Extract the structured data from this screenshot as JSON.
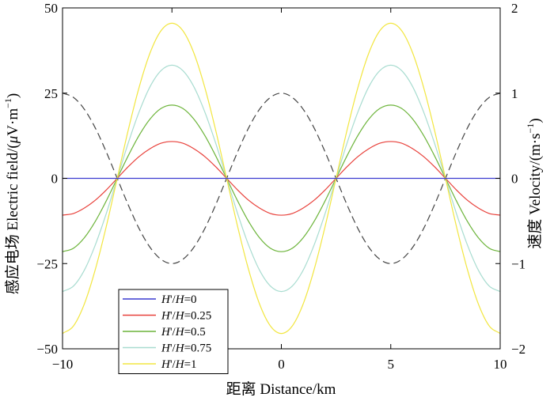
{
  "chart_data": {
    "type": "line",
    "x": [
      -10,
      -9.5,
      -9,
      -8.5,
      -8,
      -7.5,
      -7,
      -6.5,
      -6,
      -5.5,
      -5,
      -4.5,
      -4,
      -3.5,
      -3,
      -2.5,
      -2,
      -1.5,
      -1,
      -0.5,
      0,
      0.5,
      1,
      1.5,
      2,
      2.5,
      3,
      3.5,
      4,
      4.5,
      5,
      5.5,
      6,
      6.5,
      7,
      7.5,
      8,
      8.5,
      9,
      9.5,
      10
    ],
    "xlabel": "距离 Distance/km",
    "ylabel_left": "感应电场 Electric field/(μV·m⁻¹)",
    "ylabel_left_parts": [
      "感应电场 Electric field/(",
      "μ",
      "V·m",
      "−1",
      ")"
    ],
    "ylabel_right": "速度 Velocity/(m·s⁻¹)",
    "ylabel_right_parts": [
      "速度 Velocity/(m·s",
      "−1",
      ")"
    ],
    "xlim": [
      -10,
      10
    ],
    "ylim_left": [
      -50,
      50
    ],
    "ylim_right": [
      -2,
      2
    ],
    "xticks": [
      -10,
      -5,
      0,
      5,
      10
    ],
    "xtick_labels": [
      "−10",
      "−5",
      "0",
      "5",
      "10"
    ],
    "yticks_left": [
      -50,
      -25,
      0,
      25,
      50
    ],
    "ytick_labels_left": [
      "−50",
      "−25",
      "0",
      "25",
      "50"
    ],
    "yticks_right": [
      -2,
      -1,
      0,
      1,
      2
    ],
    "ytick_labels_right": [
      "−2",
      "−1",
      "0",
      "1",
      "2"
    ],
    "grid": false,
    "legend_position": "bottom-left",
    "series": [
      {
        "label": {
          "a": "H",
          "b": "'/",
          "c": "H",
          "d": "=0"
        },
        "axis": "left",
        "color": "#3a3ad0",
        "dash": "solid",
        "values": [
          0,
          0,
          0,
          0,
          0,
          0,
          0,
          0,
          0,
          0,
          0,
          0,
          0,
          0,
          0,
          0,
          0,
          0,
          0,
          0,
          0,
          0,
          0,
          0,
          0,
          0,
          0,
          0,
          0,
          0,
          0,
          0,
          0,
          0,
          0,
          0,
          0,
          0,
          0,
          0,
          0
        ]
      },
      {
        "label": {
          "a": "H",
          "b": "'/",
          "c": "H",
          "d": "=0.25"
        },
        "axis": "left",
        "color": "#e8403a",
        "dash": "solid",
        "values": [
          -10.8,
          -10.3,
          -8.7,
          -6.4,
          -3.4,
          0,
          3.4,
          6.4,
          8.7,
          10.3,
          10.8,
          10.3,
          8.7,
          6.4,
          3.4,
          0,
          -3.4,
          -6.4,
          -8.7,
          -10.3,
          -10.8,
          -10.3,
          -8.7,
          -6.4,
          -3.4,
          0,
          3.4,
          6.4,
          8.7,
          10.3,
          10.8,
          10.3,
          8.7,
          6.4,
          3.4,
          0,
          -3.4,
          -6.4,
          -8.7,
          -10.3,
          -10.8
        ]
      },
      {
        "label": {
          "a": "H",
          "b": "'/",
          "c": "H",
          "d": "=0.5"
        },
        "axis": "left",
        "color": "#6cb43a",
        "dash": "solid",
        "values": [
          -21.5,
          -20.5,
          -17.4,
          -12.6,
          -6.6,
          0,
          6.6,
          12.6,
          17.4,
          20.5,
          21.5,
          20.5,
          17.4,
          12.6,
          6.6,
          0,
          -6.6,
          -12.6,
          -17.4,
          -20.5,
          -21.5,
          -20.5,
          -17.4,
          -12.6,
          -6.6,
          0,
          6.6,
          12.6,
          17.4,
          20.5,
          21.5,
          20.5,
          17.4,
          12.6,
          6.6,
          0,
          -6.6,
          -12.6,
          -17.4,
          -20.5,
          -21.5
        ]
      },
      {
        "label": {
          "a": "H",
          "b": "'/",
          "c": "H",
          "d": "=0.75"
        },
        "axis": "left",
        "color": "#a8dcd0",
        "dash": "solid",
        "values": [
          -33.2,
          -31.6,
          -26.9,
          -19.5,
          -10.3,
          0,
          10.3,
          19.5,
          26.9,
          31.6,
          33.2,
          31.6,
          26.9,
          19.5,
          10.3,
          0,
          -10.3,
          -19.5,
          -26.9,
          -31.6,
          -33.2,
          -31.6,
          -26.9,
          -19.5,
          -10.3,
          0,
          10.3,
          19.5,
          26.9,
          31.6,
          33.2,
          31.6,
          26.9,
          19.5,
          10.3,
          0,
          -10.3,
          -19.5,
          -26.9,
          -31.6,
          -33.2
        ]
      },
      {
        "label": {
          "a": "H",
          "b": "'/",
          "c": "H",
          "d": "=1"
        },
        "axis": "left",
        "color": "#f2e640",
        "dash": "solid",
        "values": [
          -45.5,
          -43.3,
          -36.8,
          -26.7,
          -14.1,
          0,
          14.1,
          26.7,
          36.8,
          43.3,
          45.5,
          43.3,
          36.8,
          26.7,
          14.1,
          0,
          -14.1,
          -26.7,
          -36.8,
          -43.3,
          -45.5,
          -43.3,
          -36.8,
          -26.7,
          -14.1,
          0,
          14.1,
          26.7,
          36.8,
          43.3,
          45.5,
          43.3,
          36.8,
          26.7,
          14.1,
          0,
          -14.1,
          -26.7,
          -36.8,
          -43.3,
          -45.5
        ]
      },
      {
        "label": null,
        "axis": "right",
        "color": "#444444",
        "dash": "dashed",
        "values": [
          1.0,
          0.95,
          0.81,
          0.59,
          0.31,
          0,
          -0.31,
          -0.59,
          -0.81,
          -0.95,
          -1.0,
          -0.95,
          -0.81,
          -0.59,
          -0.31,
          0,
          0.31,
          0.59,
          0.81,
          0.95,
          1.0,
          0.95,
          0.81,
          0.59,
          0.31,
          0,
          -0.31,
          -0.59,
          -0.81,
          -0.95,
          -1.0,
          -0.95,
          -0.81,
          -0.59,
          -0.31,
          0,
          0.31,
          0.59,
          0.81,
          0.95,
          1.0
        ]
      }
    ]
  }
}
